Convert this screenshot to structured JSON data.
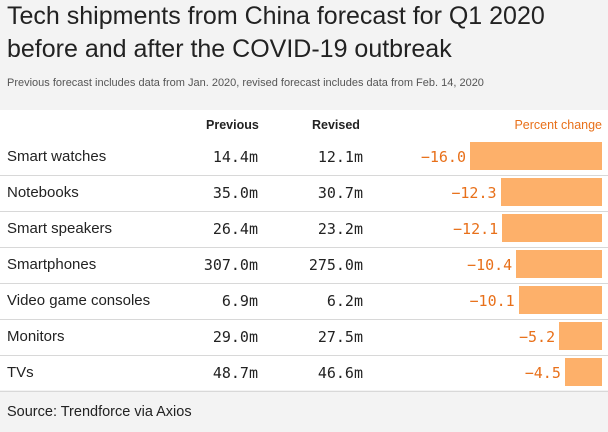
{
  "chart_data": {
    "type": "table",
    "title": "Tech shipments from China forecast for Q1 2020 before and after the COVID-19 outbreak",
    "subtitle": "Previous forecast includes data from Jan. 2020, revised forecast includes data from Feb. 14, 2020",
    "columns": [
      "Previous",
      "Revised",
      "Percent change"
    ],
    "rows": [
      {
        "category": "Smart watches",
        "previous": "14.4m",
        "revised": "12.1m",
        "percent_change": -16.0,
        "percent_label": "−16.0"
      },
      {
        "category": "Notebooks",
        "previous": "35.0m",
        "revised": "30.7m",
        "percent_change": -12.3,
        "percent_label": "−12.3"
      },
      {
        "category": "Smart speakers",
        "previous": "26.4m",
        "revised": "23.2m",
        "percent_change": -12.1,
        "percent_label": "−12.1"
      },
      {
        "category": "Smartphones",
        "previous": "307.0m",
        "revised": "275.0m",
        "percent_change": -10.4,
        "percent_label": "−10.4"
      },
      {
        "category": "Video game consoles",
        "previous": "6.9m",
        "revised": "6.2m",
        "percent_change": -10.1,
        "percent_label": "−10.1"
      },
      {
        "category": "Monitors",
        "previous": "29.0m",
        "revised": "27.5m",
        "percent_change": -5.2,
        "percent_label": "−5.2"
      },
      {
        "category": "TVs",
        "previous": "48.7m",
        "revised": "46.6m",
        "percent_change": -4.5,
        "percent_label": "−4.5"
      }
    ],
    "source": "Source: Trendforce via Axios",
    "colors": {
      "bar": "#fdb06a",
      "accent_text": "#e8701a"
    }
  }
}
